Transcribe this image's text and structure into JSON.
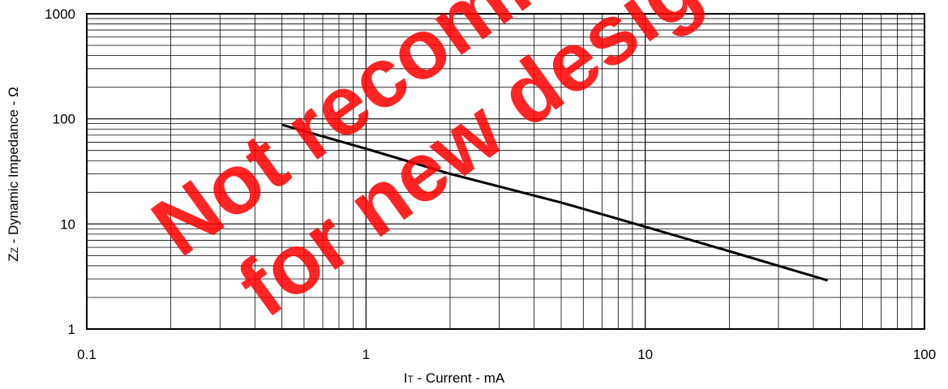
{
  "chart_data": {
    "type": "line",
    "title": "",
    "xlabel": {
      "main": "I",
      "sub": "T",
      "rest": " - Current - mA"
    },
    "ylabel": {
      "main": "Z",
      "sub": "Z",
      "rest": " - Dynamic Impedance - Ω"
    },
    "x_scale": "log",
    "y_scale": "log",
    "xlim": [
      0.1,
      100
    ],
    "ylim": [
      1,
      1000
    ],
    "x_ticks": [
      "0.1",
      "1",
      "10",
      "100"
    ],
    "y_ticks": [
      "1",
      "10",
      "100",
      "1000"
    ],
    "grid": true,
    "series": [
      {
        "x": [
          0.5,
          1,
          2,
          5,
          10,
          20,
          45
        ],
        "y": [
          88,
          52,
          30,
          16,
          9.4,
          5.5,
          2.9
        ]
      }
    ],
    "watermark": [
      "Not recommended",
      "for new design"
    ],
    "colors": {
      "line": "#000000",
      "grid": "#000000",
      "watermark": "#ff0000"
    }
  }
}
